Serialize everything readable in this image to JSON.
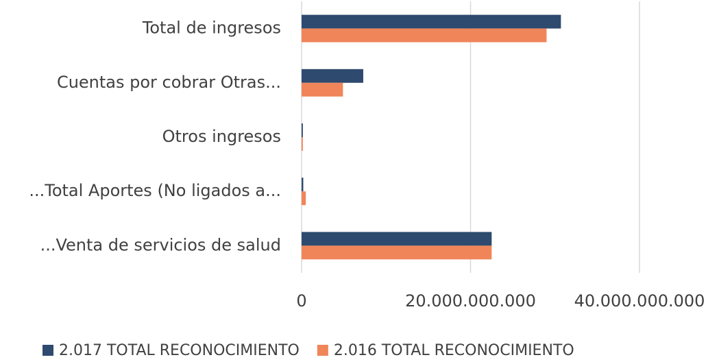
{
  "chart_data": {
    "type": "bar",
    "orientation": "horizontal",
    "categories": [
      "Total de ingresos",
      "Cuentas por cobrar Otras...",
      "Otros ingresos",
      "...Total Aportes (No ligados a...",
      "...Venta de servicios de salud"
    ],
    "series": [
      {
        "name": "2.017 TOTAL RECONOCIMIENTO",
        "color": "#2e4a6e",
        "values": [
          30700000000,
          7300000000,
          150000000,
          200000000,
          22500000000
        ]
      },
      {
        "name": "2.016 TOTAL RECONOCIMIENTO",
        "color": "#f0855a",
        "values": [
          29000000000,
          4900000000,
          150000000,
          500000000,
          22500000000
        ]
      }
    ],
    "xlim": [
      0,
      40000000000
    ],
    "xticks": [
      0,
      {
        "value": 20000000000,
        "label": "20.000.000.000"
      },
      {
        "value": 40000000000,
        "label": "40.000.000.000"
      }
    ],
    "grid": true,
    "legend": "bottom"
  }
}
